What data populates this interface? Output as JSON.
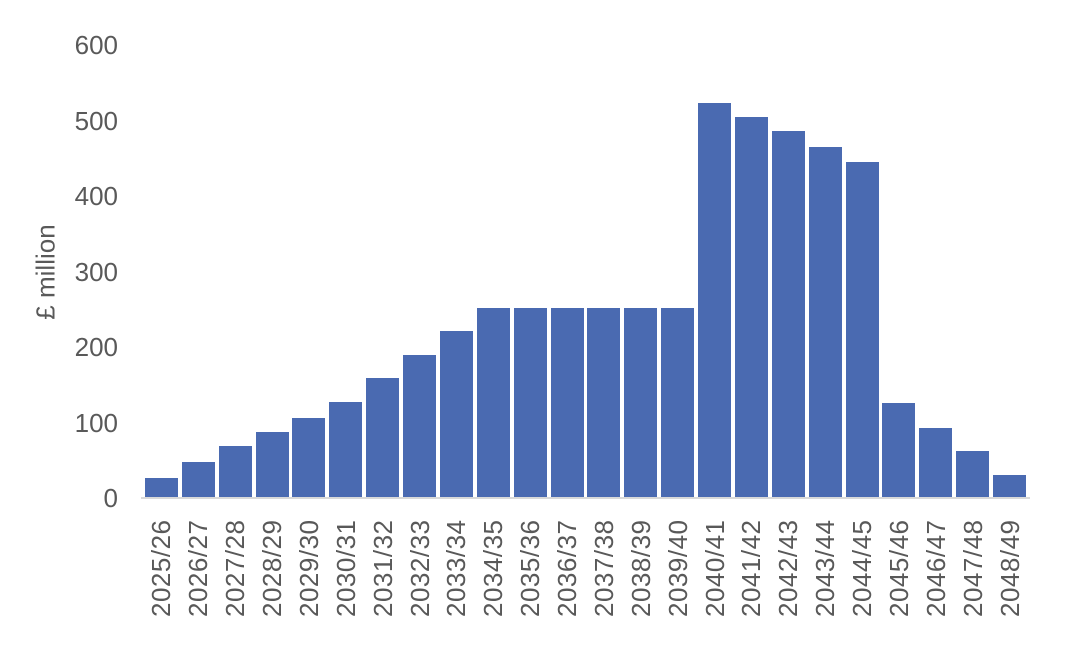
{
  "chart_data": {
    "type": "bar",
    "title": "",
    "xlabel": "",
    "ylabel": "£ million",
    "categories": [
      "2025/26",
      "2026/27",
      "2027/28",
      "2028/29",
      "2029/30",
      "2030/31",
      "2031/32",
      "2032/33",
      "2033/34",
      "2034/35",
      "2035/36",
      "2036/37",
      "2037/38",
      "2038/39",
      "2039/40",
      "2040/41",
      "2041/42",
      "2042/43",
      "2043/44",
      "2044/45",
      "2045/46",
      "2046/47",
      "2047/48",
      "2048/49"
    ],
    "values": [
      27,
      48,
      69,
      88,
      106,
      127,
      159,
      189,
      221,
      252,
      252,
      252,
      252,
      252,
      252,
      523,
      505,
      486,
      465,
      445,
      126,
      93,
      62,
      30
    ],
    "yticks": [
      0,
      100,
      200,
      300,
      400,
      500,
      600
    ],
    "ylim": [
      0,
      600
    ],
    "grid": false,
    "legend": false,
    "bar_color": "#4a6ab1",
    "axis_line_color": "#d9d9d9",
    "label_color": "#595959",
    "background": "#ffffff"
  }
}
